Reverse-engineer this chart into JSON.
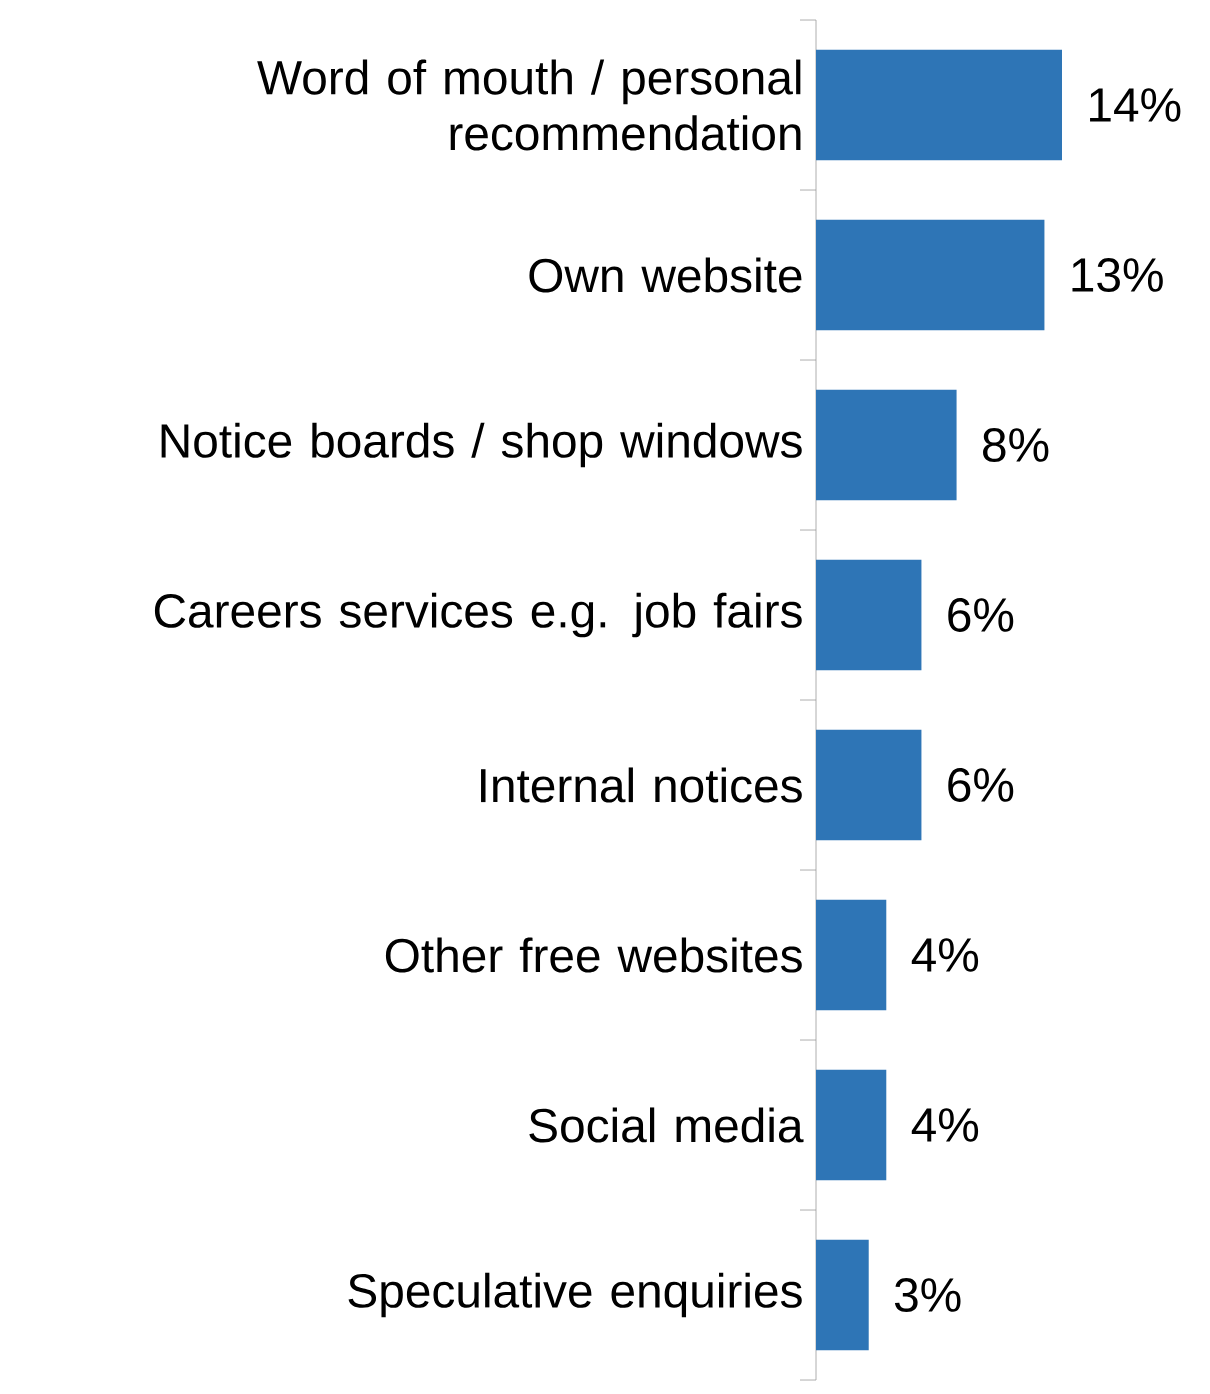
{
  "chart_data": {
    "type": "bar",
    "orientation": "horizontal",
    "categories": [
      "Word of mouth / personal recommendation",
      "Own website",
      "Notice boards / shop windows",
      "Careers services e.g. job fairs",
      "Internal notices",
      "Other free websites",
      "Social media",
      "Speculative enquiries"
    ],
    "values": [
      14,
      13,
      8,
      6,
      6,
      4,
      4,
      3
    ],
    "value_labels": [
      "14%",
      "13%",
      "8%",
      "6%",
      "6%",
      "4%",
      "4%",
      "3%"
    ],
    "color": "#2e75b6"
  }
}
